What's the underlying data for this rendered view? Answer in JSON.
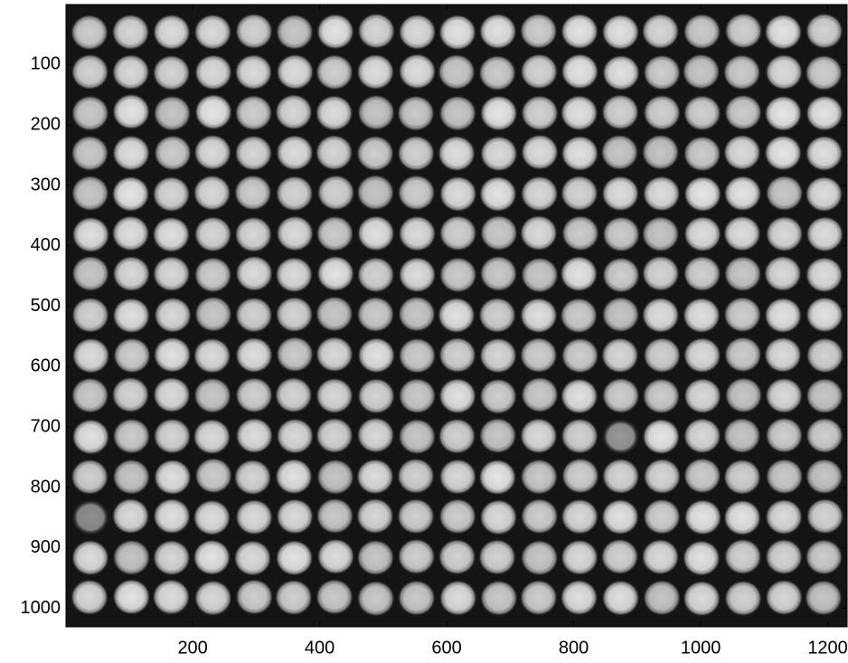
{
  "chart_data": {
    "type": "image",
    "xlim": [
      0.5,
      1230.5
    ],
    "ylim": [
      0.5,
      1030.5
    ],
    "y_reversed": true,
    "xticks": [
      200,
      400,
      600,
      800,
      1000,
      1200
    ],
    "yticks": [
      100,
      200,
      300,
      400,
      500,
      600,
      700,
      800,
      900,
      1000
    ]
  }
}
